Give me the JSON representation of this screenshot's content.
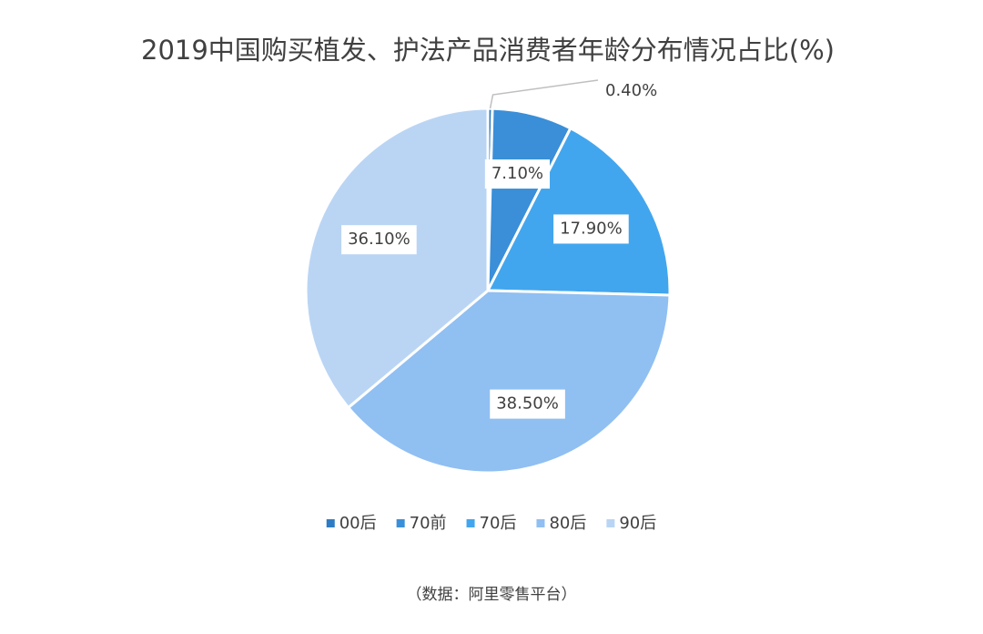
{
  "chart_data": {
    "type": "pie",
    "title": "2019中国购买植发、护法产品消费者年龄分布情况占比(%)",
    "categories": [
      "00后",
      "70前",
      "70后",
      "80后",
      "90后"
    ],
    "values": [
      0.4,
      7.1,
      17.9,
      38.5,
      36.1
    ],
    "value_labels": [
      "0.40%",
      "7.10%",
      "17.90%",
      "38.50%",
      "36.10%"
    ],
    "colors": [
      "#2e7cc4",
      "#3a8fd8",
      "#42a6ee",
      "#90bff2",
      "#bad5f4"
    ],
    "legend": "bottom",
    "source": "（数据：阿里零售平台）"
  }
}
